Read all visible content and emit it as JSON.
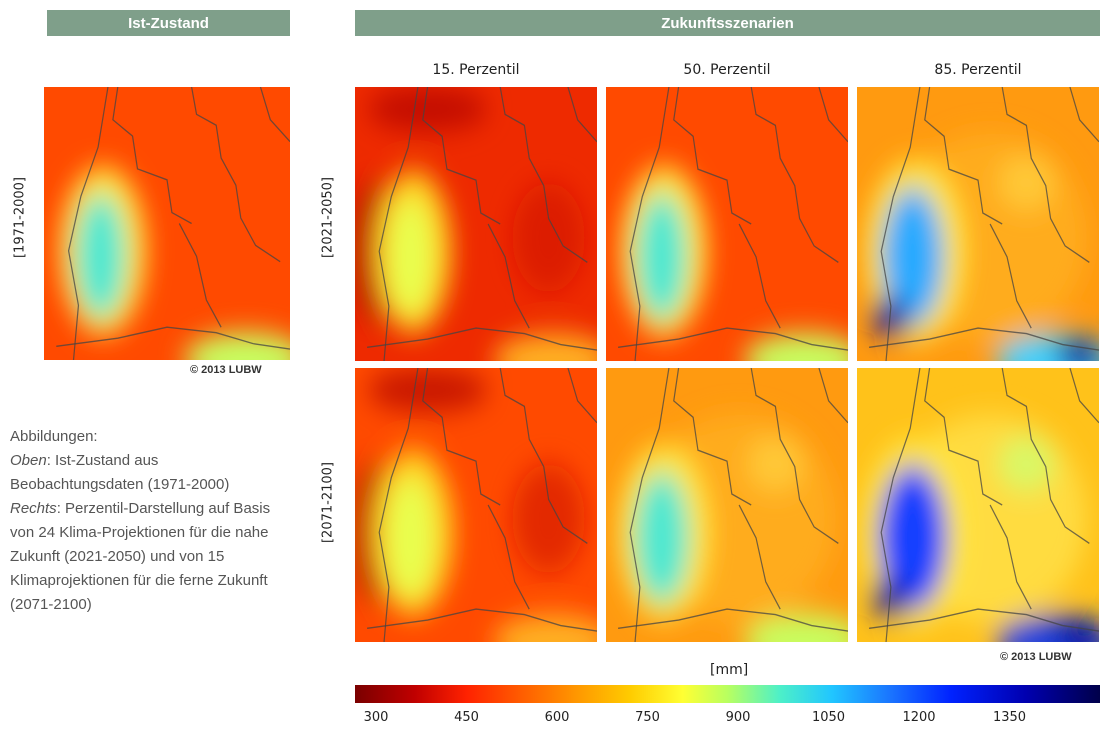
{
  "banners": {
    "current": "Ist-Zustand",
    "future": "Zukunftsszenarien"
  },
  "columns": [
    "15. Perzentil",
    "50. Perzentil",
    "85. Perzentil"
  ],
  "rows": {
    "baseline": "[1971-2000]",
    "near": "[2021-2050]",
    "far": "[2071-2100]"
  },
  "copyright": "© 2013 LUBW",
  "caption": {
    "line1": "Abbildungen:",
    "oben_label": "Oben",
    "oben_text": ": Ist-Zustand aus Beobachtungsdaten (1971-2000)",
    "rechts_label": "Rechts",
    "rechts_text": ": Perzentil-Darstellung auf Basis von 24 Klima-Projektionen für die nahe Zukunft (2021-2050) und von 15 Klimaprojektionen für die ferne Zukunft (2071-2100)"
  },
  "colorbar": {
    "unit": "[mm]",
    "ticks": [
      "300",
      "450",
      "600",
      "750",
      "900",
      "1050",
      "1200",
      "1350"
    ],
    "colors": [
      "#7a0000",
      "#ff2200",
      "#ff9900",
      "#ffff33",
      "#4df0c8",
      "#1a73ff",
      "#0000b0"
    ]
  },
  "maps": {
    "baseline": {
      "wetness": 0.35
    },
    "near": [
      {
        "wetness": 0.2
      },
      {
        "wetness": 0.38
      },
      {
        "wetness": 0.65
      }
    ],
    "far": [
      {
        "wetness": 0.28
      },
      {
        "wetness": 0.48
      },
      {
        "wetness": 0.8
      }
    ]
  }
}
